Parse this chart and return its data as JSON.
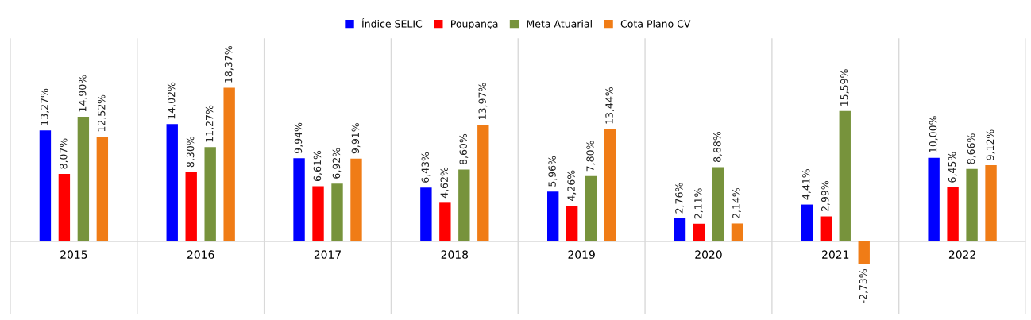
{
  "chart_data": {
    "type": "bar",
    "categories": [
      "2015",
      "2016",
      "2017",
      "2018",
      "2019",
      "2020",
      "2021",
      "2022"
    ],
    "series": [
      {
        "name": "Índice SELIC",
        "color": "#0000ff",
        "values": [
          13.27,
          14.02,
          9.94,
          6.43,
          5.96,
          2.76,
          4.41,
          10.0
        ],
        "value_labels": [
          "13,27%",
          "14,02%",
          "9,94%",
          "6,43%",
          "5,96%",
          "2,76%",
          "4,41%",
          "10,00%"
        ]
      },
      {
        "name": "Poupança",
        "color": "#ff0000",
        "values": [
          8.07,
          8.3,
          6.61,
          4.62,
          4.26,
          2.11,
          2.99,
          6.45
        ],
        "value_labels": [
          "8,07%",
          "8,30%",
          "6,61%",
          "4,62%",
          "4,26%",
          "2,11%",
          "2,99%",
          "6,45%"
        ]
      },
      {
        "name": "Meta Atuarial",
        "color": "#77933c",
        "values": [
          14.9,
          11.27,
          6.92,
          8.6,
          7.8,
          8.88,
          15.59,
          8.66
        ],
        "value_labels": [
          "14,90%",
          "11,27%",
          "6,92%",
          "8,60%",
          "7,80%",
          "8,88%",
          "15,59%",
          "8,66%"
        ]
      },
      {
        "name": "Cota Plano CV",
        "color": "#f07c16",
        "values": [
          12.52,
          18.37,
          9.91,
          13.97,
          13.44,
          2.14,
          -2.73,
          9.12
        ],
        "value_labels": [
          "12,52%",
          "18,37%",
          "9,91%",
          "13,97%",
          "13,44%",
          "2,14%",
          "-2,73%",
          "9,12%"
        ]
      }
    ],
    "grid": "x",
    "legend": "top"
  }
}
